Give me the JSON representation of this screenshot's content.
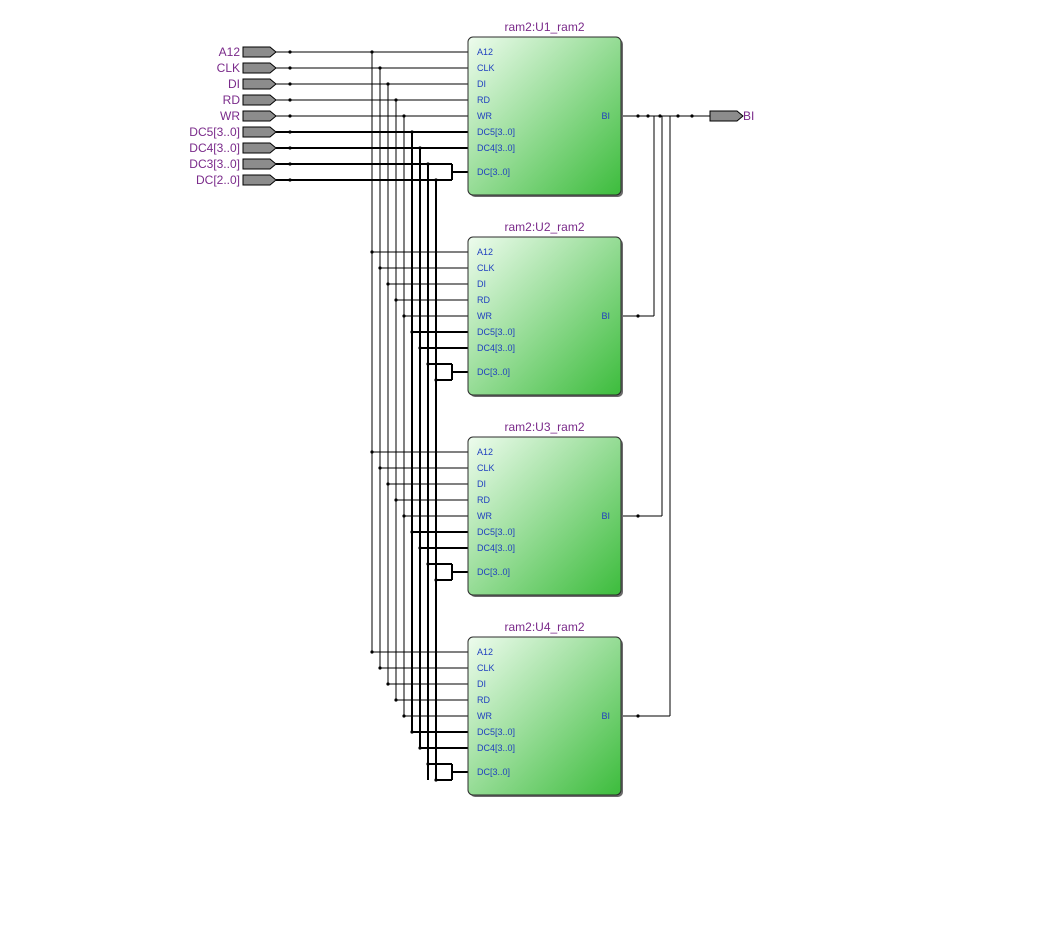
{
  "colors": {
    "pin_label": "#7a2a8a",
    "port_label": "#1f3fbf",
    "block_light": "#e8fbe8",
    "block_dark": "#3fbf3f",
    "pin_fill": "#8c8c8c",
    "wire": "#000000"
  },
  "inputs": [
    "A12",
    "CLK",
    "DI",
    "RD",
    "WR",
    "DC5[3..0]",
    "DC4[3..0]",
    "DC3[3..0]",
    "DC[2..0]"
  ],
  "output": "BI",
  "instances": [
    {
      "title": "ram2:U1_ram2"
    },
    {
      "title": "ram2:U2_ram2"
    },
    {
      "title": "ram2:U3_ram2"
    },
    {
      "title": "ram2:U4_ram2"
    }
  ],
  "ports_in": [
    "A12",
    "CLK",
    "DI",
    "RD",
    "WR",
    "DC5[3..0]",
    "DC4[3..0]",
    "DC[3..0]"
  ],
  "port_out": "BI"
}
